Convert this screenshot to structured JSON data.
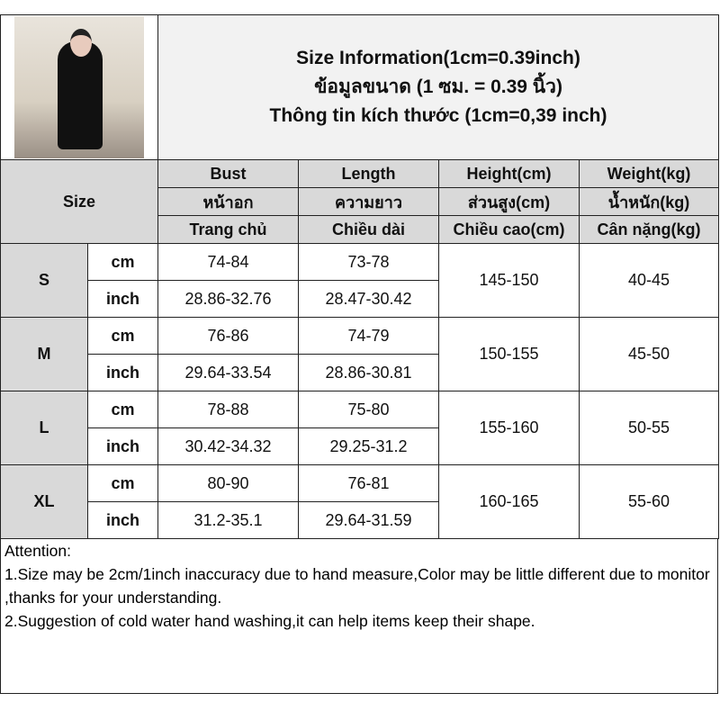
{
  "title_lines": [
    "Size Information(1cm=0.39inch)",
    "ข้อมูลขนาด (1 ซม. = 0.39 นิ้ว)",
    "Thông tin kích thước (1cm=0,39 inch)"
  ],
  "size_header": "Size",
  "columns": [
    [
      "Bust",
      "หน้าอก",
      "Trang chủ"
    ],
    [
      "Length",
      "ความยาว",
      "Chiều dài"
    ],
    [
      "Height(cm)",
      "ส่วนสูง(cm)",
      "Chiều cao(cm)"
    ],
    [
      "Weight(kg)",
      "น้ำหนัก(kg)",
      "Cân nặng(kg)"
    ]
  ],
  "rows": [
    {
      "size": "S",
      "cm": {
        "unit": "cm",
        "bust": "74-84",
        "length": "73-78"
      },
      "inch": {
        "unit": "inch",
        "bust": "28.86-32.76",
        "length": "28.47-30.42"
      },
      "height": "145-150",
      "weight": "40-45"
    },
    {
      "size": "M",
      "cm": {
        "unit": "cm",
        "bust": "76-86",
        "length": "74-79"
      },
      "inch": {
        "unit": "inch",
        "bust": "29.64-33.54",
        "length": "28.86-30.81"
      },
      "height": "150-155",
      "weight": "45-50"
    },
    {
      "size": "L",
      "cm": {
        "unit": "cm",
        "bust": "78-88",
        "length": "75-80"
      },
      "inch": {
        "unit": "inch",
        "bust": "30.42-34.32",
        "length": "29.25-31.2"
      },
      "height": "155-160",
      "weight": "50-55"
    },
    {
      "size": "XL",
      "cm": {
        "unit": "cm",
        "bust": "80-90",
        "length": "76-81"
      },
      "inch": {
        "unit": "inch",
        "bust": "31.2-35.1",
        "length": "29.64-31.59"
      },
      "height": "160-165",
      "weight": "55-60"
    }
  ],
  "notes": [
    "Attention:",
    "1.Size may be 2cm/1inch inaccuracy due to hand measure,Color may be little different due to monitor ,thanks for your understanding.",
    "2.Suggestion of cold water hand washing,it can help items keep their shape."
  ]
}
